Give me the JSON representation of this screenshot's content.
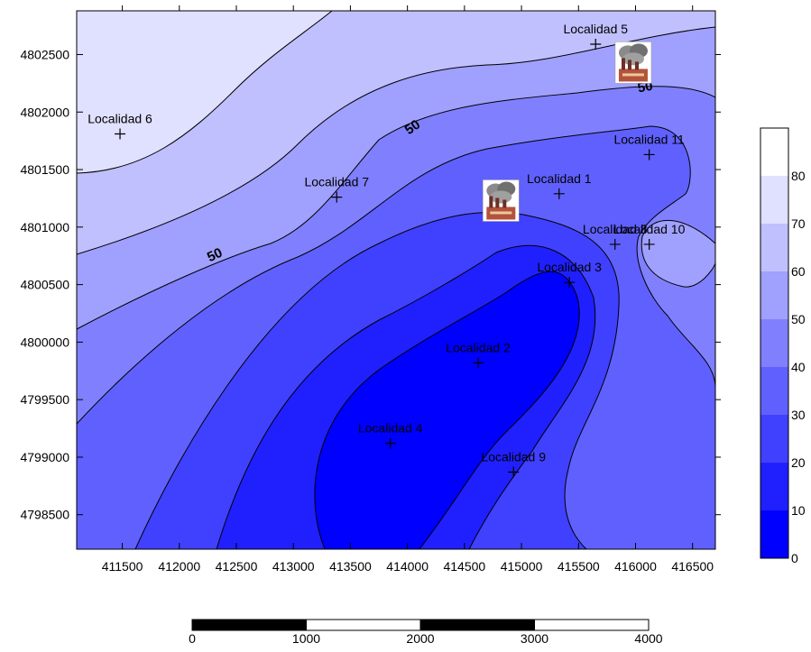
{
  "chart_data": {
    "type": "contour",
    "x_ticks": [
      411500,
      412000,
      412500,
      413000,
      413500,
      414000,
      414500,
      415000,
      415500,
      416000,
      416500
    ],
    "y_ticks": [
      4802500,
      4802000,
      4801500,
      4801000,
      4800500,
      4800000,
      4799500,
      4799000,
      4798500
    ],
    "xlim": [
      411100,
      416700
    ],
    "ylim": [
      4798200,
      4802880
    ],
    "contour_levels": [
      10,
      20,
      30,
      40,
      50,
      60,
      70
    ],
    "contour_labels": [
      "50",
      "50",
      "50"
    ],
    "colorbar": {
      "ticks": [
        "0",
        "10",
        "20",
        "30",
        "40",
        "50",
        "60",
        "70",
        "80"
      ],
      "colors": [
        "#0000ff",
        "#2020ff",
        "#4040ff",
        "#6060ff",
        "#8080ff",
        "#a0a0ff",
        "#c0c0ff",
        "#e0e0ff",
        "#ffffff"
      ]
    },
    "sites": [
      {
        "name": "Localidad 1",
        "x": 415330,
        "y": 4801290
      },
      {
        "name": "Localidad 2",
        "x": 414620,
        "y": 4799820
      },
      {
        "name": "Localidad 3",
        "x": 415420,
        "y": 4800520
      },
      {
        "name": "Localidad 4",
        "x": 413850,
        "y": 4799120
      },
      {
        "name": "Localidad 5",
        "x": 415650,
        "y": 4802590
      },
      {
        "name": "Localidad 6",
        "x": 411480,
        "y": 4801810
      },
      {
        "name": "Localidad 7",
        "x": 413380,
        "y": 4801260
      },
      {
        "name": "Localidad 8",
        "x": 415820,
        "y": 4800850
      },
      {
        "name": "Localidad 9",
        "x": 414930,
        "y": 4798870
      },
      {
        "name": "Localidad 10",
        "x": 416120,
        "y": 4800850
      },
      {
        "name": "Localidad 11",
        "x": 416120,
        "y": 4801630
      }
    ],
    "factories": [
      {
        "icon": "factory-icon",
        "x": 415980,
        "y": 4802430
      },
      {
        "icon": "factory-icon",
        "x": 414820,
        "y": 4801230
      }
    ],
    "scale_bar": {
      "labels": [
        "0",
        "1000",
        "2000",
        "3000",
        "4000"
      ]
    }
  }
}
